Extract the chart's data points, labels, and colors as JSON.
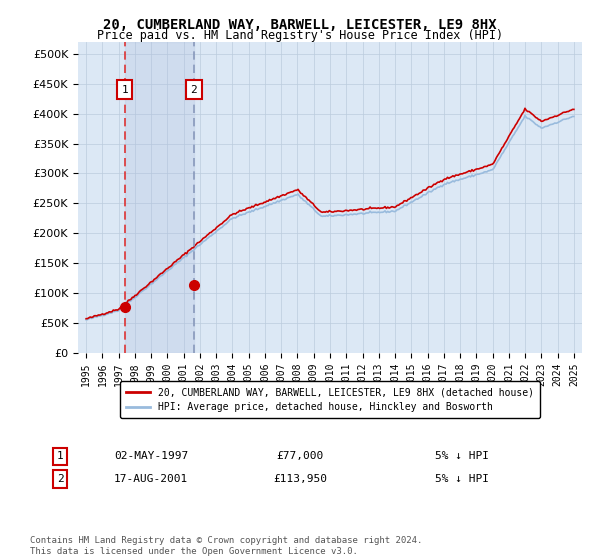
{
  "title": "20, CUMBERLAND WAY, BARWELL, LEICESTER, LE9 8HX",
  "subtitle": "Price paid vs. HM Land Registry's House Price Index (HPI)",
  "hpi_label": "HPI: Average price, detached house, Hinckley and Bosworth",
  "property_label": "20, CUMBERLAND WAY, BARWELL, LEICESTER, LE9 8HX (detached house)",
  "purchase1_date": "02-MAY-1997",
  "purchase1_price": 77000,
  "purchase1_label": "5% ↓ HPI",
  "purchase2_date": "17-AUG-2001",
  "purchase2_price": 113950,
  "purchase2_label": "5% ↓ HPI",
  "copyright": "Contains HM Land Registry data © Crown copyright and database right 2024.\nThis data is licensed under the Open Government Licence v3.0.",
  "xlim_left": 1994.5,
  "xlim_right": 2025.5,
  "ylim_bottom": 0,
  "ylim_top": 520000,
  "background_color": "#ffffff",
  "plot_bg_color": "#dce8f5",
  "grid_color": "#bbccdd",
  "hpi_line_color": "#99bbdd",
  "property_line_color": "#cc0000",
  "marker_color": "#cc0000",
  "vline1_color": "#dd3333",
  "vline2_color": "#8899bb",
  "purchase1_year": 1997.37,
  "purchase2_year": 2001.63,
  "yticks": [
    0,
    50000,
    100000,
    150000,
    200000,
    250000,
    300000,
    350000,
    400000,
    450000,
    500000
  ],
  "xticks": [
    1995,
    1996,
    1997,
    1998,
    1999,
    2000,
    2001,
    2002,
    2003,
    2004,
    2005,
    2006,
    2007,
    2008,
    2009,
    2010,
    2011,
    2012,
    2013,
    2014,
    2015,
    2016,
    2017,
    2018,
    2019,
    2020,
    2021,
    2022,
    2023,
    2024,
    2025
  ]
}
